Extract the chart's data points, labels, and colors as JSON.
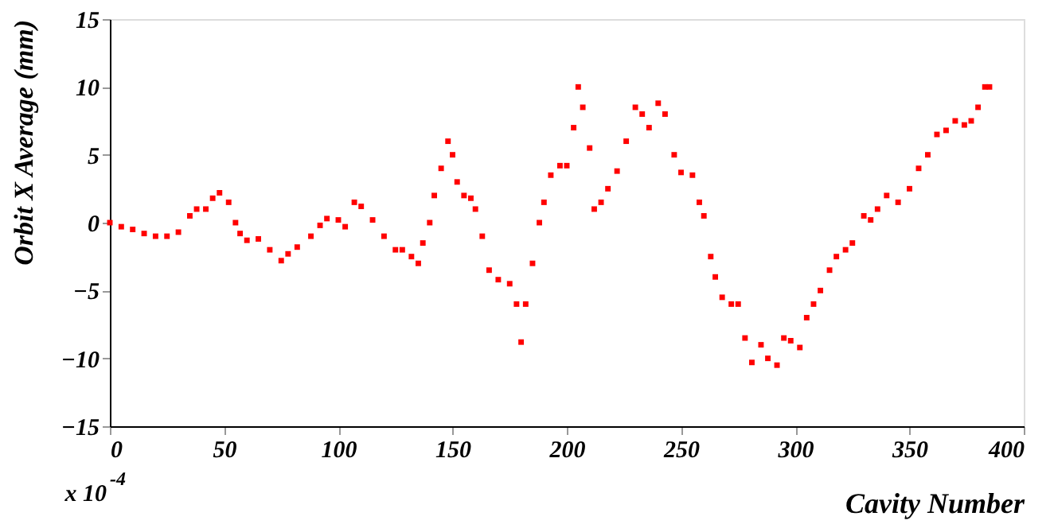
{
  "chart_data": {
    "type": "scatter",
    "xlabel": "Cavity Number",
    "ylabel": "Orbit X Average (mm)",
    "annotations": [
      "x 10$^{-4}$"
    ],
    "x": [
      0,
      5,
      10,
      15,
      20,
      25,
      30,
      35,
      38,
      42,
      45,
      48,
      52,
      55,
      57,
      60,
      65,
      70,
      75,
      78,
      82,
      88,
      92,
      95,
      100,
      103,
      107,
      110,
      115,
      120,
      125,
      128,
      132,
      135,
      137,
      140,
      142,
      145,
      148,
      150,
      152,
      155,
      158,
      160,
      163,
      166,
      170,
      175,
      178,
      180,
      182,
      185,
      188,
      190,
      193,
      197,
      200,
      203,
      205,
      207,
      210,
      212,
      215,
      218,
      222,
      226,
      230,
      233,
      236,
      240,
      243,
      247,
      250,
      255,
      258,
      260,
      263,
      265,
      268,
      272,
      275,
      278,
      281,
      285,
      288,
      292,
      295,
      298,
      302,
      305,
      308,
      311,
      315,
      318,
      322,
      325,
      330,
      333,
      336,
      340,
      345,
      350,
      354,
      358,
      362,
      366,
      370,
      374,
      377,
      380,
      383,
      385
    ],
    "series": [
      {
        "color": "#ff0000",
        "values": [
          0,
          -0.3,
          -0.5,
          -0.8,
          -1,
          -1,
          -0.7,
          0.5,
          1,
          1,
          1.8,
          2.2,
          1.5,
          0,
          -0.8,
          -1.3,
          -1.2,
          -2,
          -2.8,
          -2.3,
          -1.8,
          -1,
          -0.2,
          0.3,
          0.2,
          -0.3,
          1.5,
          1.2,
          0.2,
          -1,
          -2,
          -2,
          -2.5,
          -3,
          -1.5,
          0,
          2,
          4,
          6,
          5,
          3,
          2,
          1.8,
          1,
          -1,
          -3.5,
          -4.2,
          -4.5,
          -6,
          -8.8,
          -6,
          -3,
          0,
          1.5,
          3.5,
          4.2,
          4.2,
          7,
          10,
          8.5,
          5.5,
          1,
          1.5,
          2.5,
          3.8,
          6,
          8.5,
          8,
          7,
          8.8,
          8,
          5,
          3.7,
          3.5,
          1.5,
          0.5,
          -2.5,
          -4,
          -5.5,
          -6,
          -6,
          -8.5,
          -10.3,
          -9,
          -10,
          -10.5,
          -8.5,
          -8.7,
          -9.2,
          -7,
          -6,
          -5,
          -3.5,
          -2.5,
          -2,
          -1.5,
          0.5,
          0.2,
          1,
          2,
          1.5,
          2.5,
          4,
          5,
          6.5,
          6.8,
          7.5,
          7.2,
          7.5,
          8.5,
          10,
          10
        ]
      }
    ],
    "xlim": [
      0,
      400
    ],
    "xticks": [
      0,
      50,
      100,
      150,
      200,
      250,
      300,
      350,
      400
    ],
    "ylim": [
      -15,
      15
    ],
    "yticks": [
      -15,
      -10,
      -5,
      0,
      5,
      10,
      15
    ],
    "marker": "square",
    "grid": false,
    "legend": false
  }
}
